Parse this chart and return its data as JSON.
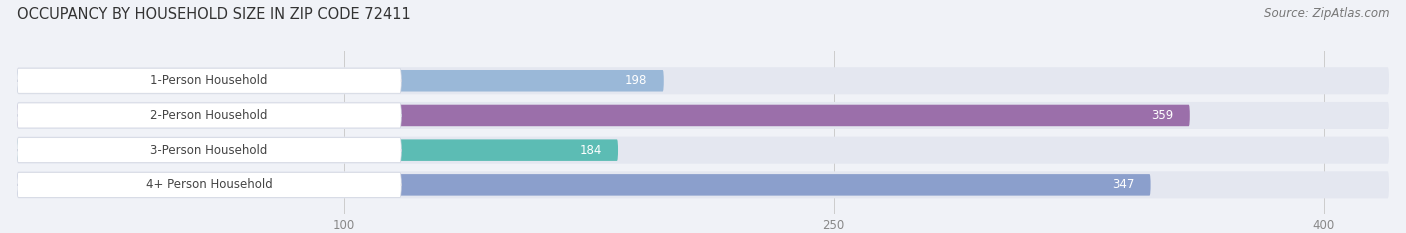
{
  "title": "OCCUPANCY BY HOUSEHOLD SIZE IN ZIP CODE 72411",
  "source": "Source: ZipAtlas.com",
  "categories": [
    "1-Person Household",
    "2-Person Household",
    "3-Person Household",
    "4+ Person Household"
  ],
  "values": [
    198,
    359,
    184,
    347
  ],
  "bar_colors": [
    "#9ab8d8",
    "#9b6faa",
    "#5cbcb4",
    "#8b9fcc"
  ],
  "xlim_max": 420,
  "xticks": [
    100,
    250,
    400
  ],
  "title_fontsize": 10.5,
  "source_fontsize": 8.5,
  "bar_height": 0.62,
  "background_color": "#f0f2f7",
  "track_color": "#e4e7f0",
  "label_box_color": "#ffffff",
  "label_text_color": "#444444",
  "value_color_inside": "#ffffff",
  "value_color_outside": "#444444",
  "grid_color": "#cccccc",
  "tick_color": "#888888"
}
